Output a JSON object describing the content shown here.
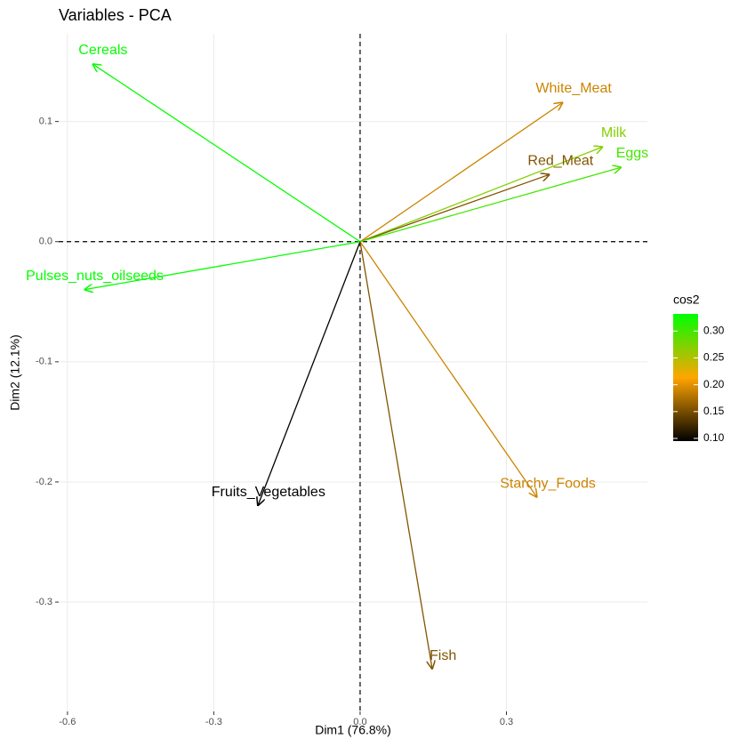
{
  "chart_data": {
    "type": "vectors",
    "title": "Variables - PCA",
    "x_label": "Dim1 (76.8%)",
    "y_label": "Dim2 (12.1%)",
    "series": [
      {
        "name": "Cereals",
        "x": -0.549,
        "y": 0.148,
        "cos2": 0.33
      },
      {
        "name": "White_Meat",
        "x": 0.416,
        "y": 0.116,
        "cos2": 0.19
      },
      {
        "name": "Milk",
        "x": 0.498,
        "y": 0.079,
        "cos2": 0.27
      },
      {
        "name": "Red_Meat",
        "x": 0.389,
        "y": 0.056,
        "cos2": 0.155
      },
      {
        "name": "Eggs",
        "x": 0.536,
        "y": 0.062,
        "cos2": 0.3
      },
      {
        "name": "Pulses_nuts_oilseeds",
        "x": -0.566,
        "y": -0.04,
        "cos2": 0.33
      },
      {
        "name": "Fruits_Vegetables",
        "x": -0.21,
        "y": -0.22,
        "cos2": 0.095
      },
      {
        "name": "Starchy_Foods",
        "x": 0.363,
        "y": -0.213,
        "cos2": 0.19
      },
      {
        "name": "Fish",
        "x": 0.148,
        "y": -0.356,
        "cos2": 0.155
      }
    ],
    "xlim": [
      -0.618,
      0.589
    ],
    "ylim": [
      -0.391,
      0.173
    ],
    "xticks": [
      -0.6,
      -0.3,
      {
        "value": 0,
        "label": "0.0"
      },
      0.3
    ],
    "yticks": [
      0.1,
      {
        "value": 0,
        "label": "0.0"
      },
      -0.1,
      -0.2,
      -0.3
    ],
    "grid": true,
    "legend": {
      "title": "cos2",
      "lim": [
        0.095,
        0.332
      ],
      "colors": [
        "#000000",
        "#ffa500",
        "#00ff00"
      ],
      "ticks": [
        {
          "value": 0.1,
          "label": "0.10"
        },
        0.15,
        {
          "value": 0.2,
          "label": "0.20"
        },
        0.25,
        {
          "value": 0.3,
          "label": "0.30"
        }
      ]
    }
  }
}
